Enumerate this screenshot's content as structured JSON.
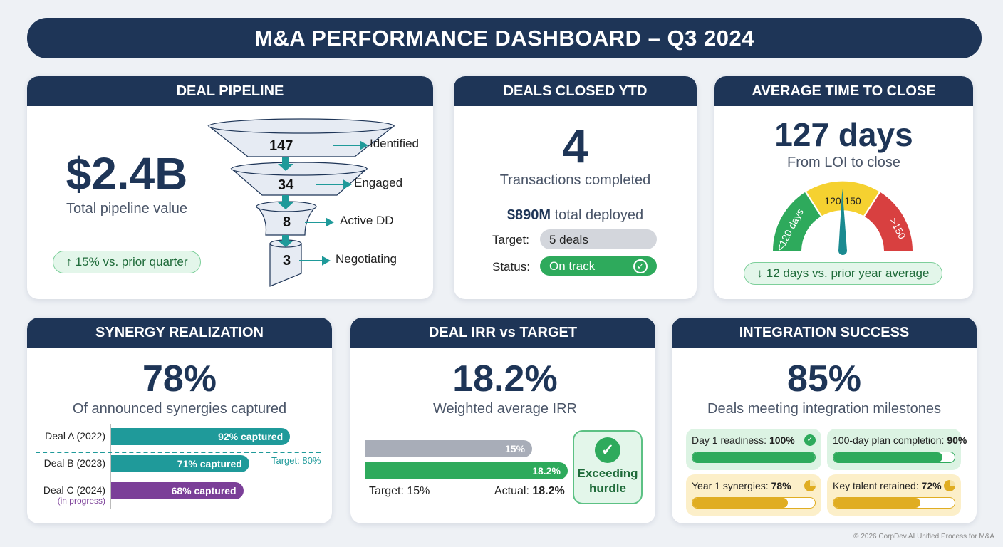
{
  "title": "M&A PERFORMANCE DASHBOARD – Q3 2024",
  "colors": {
    "navy": "#1e3557",
    "teal": "#1f9a9a",
    "green": "#2eaa5c",
    "purple": "#7b3f98",
    "gray": "#a8adb8",
    "amber": "#e0ad22"
  },
  "pipeline": {
    "header": "DEAL PIPELINE",
    "value": "$2.4B",
    "caption": "Total pipeline value",
    "change": "↑ 15% vs. prior quarter",
    "stages": [
      {
        "count": "147",
        "label": "Identified"
      },
      {
        "count": "34",
        "label": "Engaged"
      },
      {
        "count": "8",
        "label": "Active DD"
      },
      {
        "count": "3",
        "label": "Negotiating"
      }
    ]
  },
  "closed": {
    "header": "DEALS CLOSED YTD",
    "value": "4",
    "caption": "Transactions completed",
    "deployed_amount": "$890M",
    "deployed_text": "total deployed",
    "target_label": "Target:",
    "target_value": "5 deals",
    "status_label": "Status:",
    "status_value": "On track",
    "status_icon": "check-circle-icon"
  },
  "time": {
    "header": "AVERAGE TIME TO CLOSE",
    "value": "127 days",
    "caption": "From LOI to close",
    "days": 127,
    "zones": [
      "<120 days",
      "120-150",
      ">150"
    ],
    "change": "↓ 12 days vs. prior year average"
  },
  "synergy": {
    "header": "SYNERGY REALIZATION",
    "value": "78%",
    "caption": "Of announced synergies captured",
    "target": 80,
    "target_label": "Target: 80%",
    "deals": [
      {
        "name": "Deal A (2022)",
        "note": "",
        "pct": 92,
        "label": "92% captured",
        "color": "#1f9a9a"
      },
      {
        "name": "Deal B (2023)",
        "note": "",
        "pct": 71,
        "label": "71% captured",
        "color": "#1f9a9a"
      },
      {
        "name": "Deal C (2024)",
        "note": "(in progress)",
        "pct": 68,
        "label": "68% captured",
        "color": "#7b3f98"
      }
    ]
  },
  "irr": {
    "header": "DEAL IRR vs TARGET",
    "value": "18.2%",
    "caption": "Weighted average IRR",
    "target": 15,
    "actual": 18.2,
    "target_bar_label": "15%",
    "actual_bar_label": "18.2%",
    "target_text": "Target: 15%",
    "actual_prefix": "Actual:",
    "actual_text": "18.2%",
    "badge": "Exceeding hurdle"
  },
  "integration": {
    "header": "INTEGRATION SUCCESS",
    "value": "85%",
    "caption": "Deals meeting integration milestones",
    "tiles": [
      {
        "label": "Day 1 readiness:",
        "value": "100%",
        "pct": 100,
        "icon": "check-circle-icon",
        "tone": "green"
      },
      {
        "label": "100-day plan completion:",
        "value": "90%",
        "pct": 90,
        "icon": "",
        "tone": "green"
      },
      {
        "label": "Year 1 synergies:",
        "value": "78%",
        "pct": 78,
        "icon": "pie-icon",
        "tone": "amber"
      },
      {
        "label": "Key talent retained:",
        "value": "72%",
        "pct": 72,
        "icon": "pie-icon",
        "tone": "amber"
      }
    ]
  },
  "footer": "© 2026 CorpDev.AI Unified Process for M&A"
}
